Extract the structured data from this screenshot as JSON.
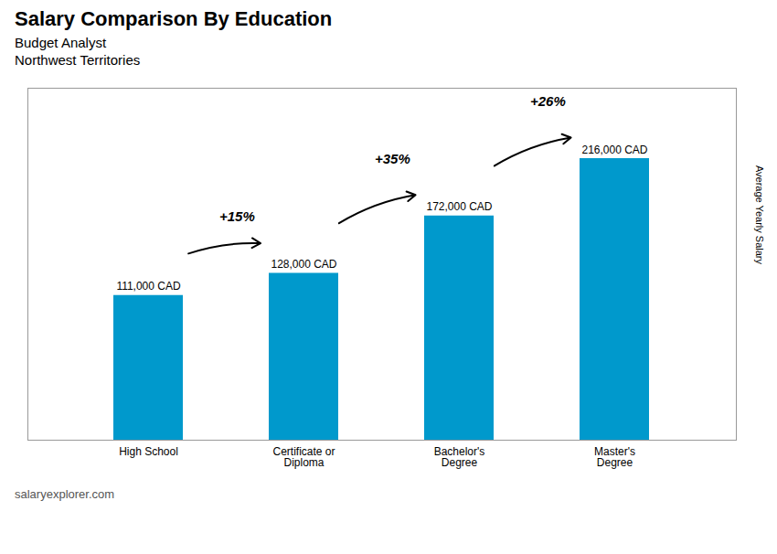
{
  "chart_data": {
    "type": "bar",
    "title": "Salary Comparison By Education",
    "subtitle": [
      "Budget Analyst",
      "Northwest Territories"
    ],
    "caption": "salaryexplorer.com",
    "ylabel": "Average Yearly Salary",
    "categories": [
      "High School",
      "Certificate or\nDiploma",
      "Bachelor's\nDegree",
      "Master's\nDegree"
    ],
    "values": [
      111000,
      128000,
      172000,
      216000
    ],
    "value_labels": [
      "111,000 CAD",
      "128,000 CAD",
      "172,000 CAD",
      "216,000 CAD"
    ],
    "data_labels": true,
    "color": "#0099cc",
    "ylim": [
      0,
      270000
    ],
    "tick_labels": "x",
    "annotations": [
      {
        "text": "+15%",
        "from": "High School",
        "to": "Certificate or\nDiploma"
      },
      {
        "text": "+35%",
        "from": "Certificate or\nDiploma",
        "to": "Bachelor's\nDegree"
      },
      {
        "text": "+26%",
        "from": "Bachelor's\nDegree",
        "to": "Master's\nDegree"
      }
    ]
  }
}
